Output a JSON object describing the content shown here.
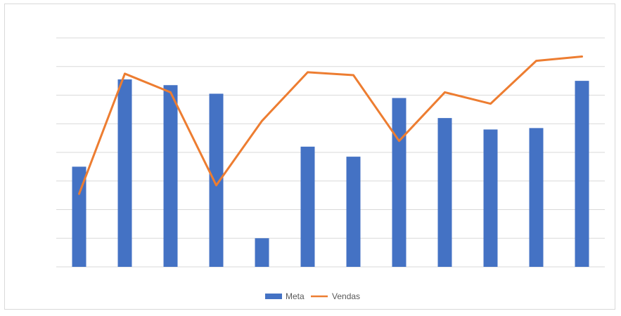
{
  "chart_data": {
    "type": "bar",
    "categories": [
      "",
      "",
      "",
      "",
      "",
      "",
      "",
      "",
      "",
      "",
      "",
      ""
    ],
    "ylim": [
      0,
      8
    ],
    "grid": true,
    "legend_position": "bottom",
    "series": [
      {
        "name": "Meta",
        "type": "bar",
        "color": "#4472C4",
        "values": [
          3.5,
          6.55,
          6.35,
          6.05,
          1.0,
          4.2,
          3.85,
          5.9,
          5.2,
          4.8,
          4.85,
          6.5
        ]
      },
      {
        "name": "Vendas",
        "type": "line",
        "color": "#ED7D31",
        "values": [
          2.55,
          6.75,
          6.1,
          2.85,
          5.1,
          6.8,
          6.7,
          4.4,
          6.1,
          5.7,
          7.2,
          7.35
        ]
      }
    ]
  }
}
